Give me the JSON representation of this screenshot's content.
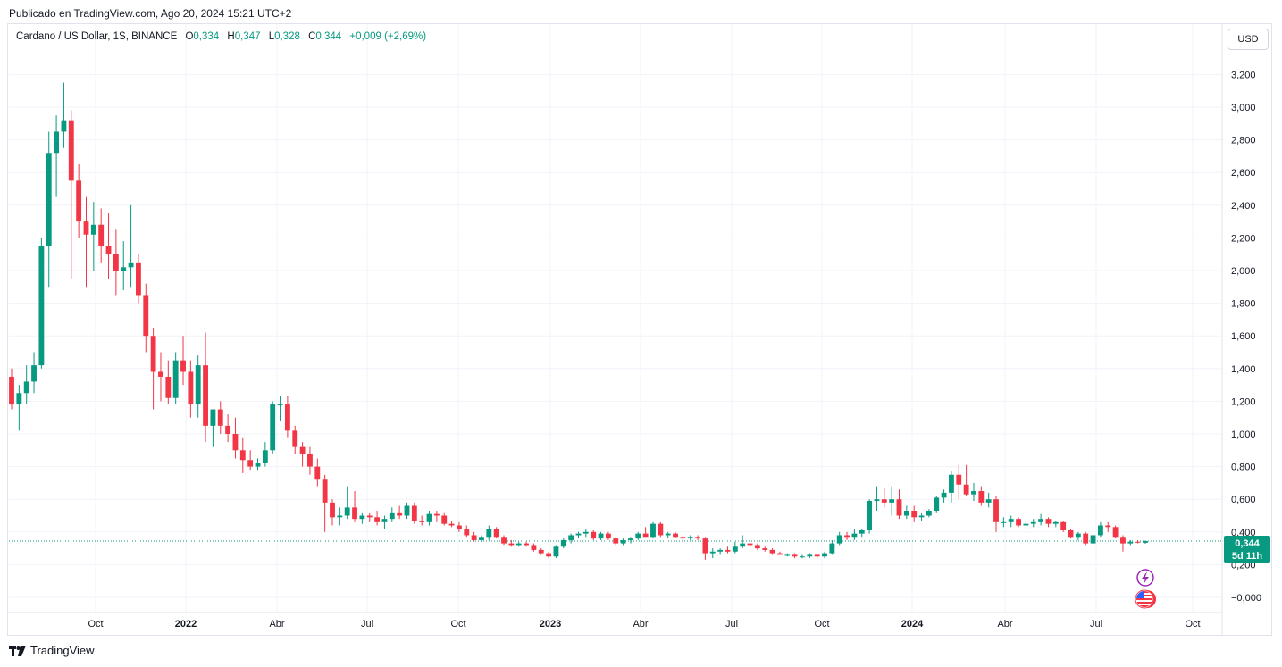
{
  "publisher": "Publicado en TradingView.com, Ago 20, 2024 15:21 UTC+2",
  "legend": {
    "symbol": "Cardano / US Dollar, 1S, BINANCE",
    "open_label": "O",
    "open": "0,334",
    "high_label": "H",
    "high": "0,347",
    "low_label": "L",
    "low": "0,328",
    "close_label": "C",
    "close": "0,344",
    "change": "+0,009 (+2,69%)"
  },
  "currency_button": "USD",
  "price_tag": {
    "price": "0,344",
    "countdown": "5d 11h"
  },
  "footer": {
    "brand": "TradingView"
  },
  "colors": {
    "up": "#089981",
    "down": "#f23645",
    "grid": "#f0f3fa",
    "tag": "#089981",
    "icon_purple": "#9c27b0",
    "icon_red": "#f23645"
  },
  "icons": [
    "lightning-icon",
    "us-flag-icon",
    "tradingview-logo-icon"
  ],
  "chart_data": {
    "type": "candlestick",
    "title": "",
    "xlabel": "",
    "ylabel": "",
    "ylim": [
      -0.1,
      3.35
    ],
    "x_tick_labels": [
      {
        "label": "Oct",
        "bold": false
      },
      {
        "label": "2022",
        "bold": true
      },
      {
        "label": "Abr",
        "bold": false
      },
      {
        "label": "Jul",
        "bold": false
      },
      {
        "label": "Oct",
        "bold": false
      },
      {
        "label": "2023",
        "bold": true
      },
      {
        "label": "Abr",
        "bold": false
      },
      {
        "label": "Jul",
        "bold": false
      },
      {
        "label": "Oct",
        "bold": false
      },
      {
        "label": "2024",
        "bold": true
      },
      {
        "label": "Abr",
        "bold": false
      },
      {
        "label": "Jul",
        "bold": false
      },
      {
        "label": "Oct",
        "bold": false
      }
    ],
    "y_tick_labels": [
      "3,200",
      "3,000",
      "2,800",
      "2,600",
      "2,400",
      "2,200",
      "2,000",
      "1,800",
      "1,600",
      "1,400",
      "1,200",
      "1,000",
      "0,800",
      "0,600",
      "0,400",
      "0,200",
      "−0,000"
    ],
    "y_tick_values": [
      3.2,
      3.0,
      2.8,
      2.6,
      2.4,
      2.2,
      2.0,
      1.8,
      1.6,
      1.4,
      1.2,
      1.0,
      0.8,
      0.6,
      0.4,
      0.2,
      0.0
    ],
    "last_price": 0.344,
    "grid": true,
    "candles": [
      {
        "o": 1.35,
        "h": 1.4,
        "l": 1.15,
        "c": 1.18
      },
      {
        "o": 1.18,
        "h": 1.3,
        "l": 1.02,
        "c": 1.25
      },
      {
        "o": 1.25,
        "h": 1.42,
        "l": 1.18,
        "c": 1.32
      },
      {
        "o": 1.32,
        "h": 1.5,
        "l": 1.25,
        "c": 1.42
      },
      {
        "o": 1.42,
        "h": 2.2,
        "l": 1.4,
        "c": 2.15
      },
      {
        "o": 2.15,
        "h": 2.85,
        "l": 1.9,
        "c": 2.72
      },
      {
        "o": 2.72,
        "h": 2.95,
        "l": 2.45,
        "c": 2.85
      },
      {
        "o": 2.85,
        "h": 3.15,
        "l": 2.75,
        "c": 2.92
      },
      {
        "o": 2.92,
        "h": 2.98,
        "l": 1.95,
        "c": 2.55
      },
      {
        "o": 2.55,
        "h": 2.65,
        "l": 2.2,
        "c": 2.3
      },
      {
        "o": 2.3,
        "h": 2.45,
        "l": 1.9,
        "c": 2.22
      },
      {
        "o": 2.22,
        "h": 2.42,
        "l": 2.0,
        "c": 2.28
      },
      {
        "o": 2.28,
        "h": 2.38,
        "l": 2.05,
        "c": 2.15
      },
      {
        "o": 2.15,
        "h": 2.35,
        "l": 1.95,
        "c": 2.1
      },
      {
        "o": 2.1,
        "h": 2.25,
        "l": 1.85,
        "c": 2.0
      },
      {
        "o": 2.0,
        "h": 2.18,
        "l": 1.88,
        "c": 2.02
      },
      {
        "o": 2.02,
        "h": 2.4,
        "l": 1.9,
        "c": 2.05
      },
      {
        "o": 2.05,
        "h": 2.1,
        "l": 1.8,
        "c": 1.85
      },
      {
        "o": 1.85,
        "h": 1.92,
        "l": 1.5,
        "c": 1.6
      },
      {
        "o": 1.6,
        "h": 1.65,
        "l": 1.15,
        "c": 1.38
      },
      {
        "o": 1.38,
        "h": 1.5,
        "l": 1.2,
        "c": 1.35
      },
      {
        "o": 1.35,
        "h": 1.45,
        "l": 1.18,
        "c": 1.22
      },
      {
        "o": 1.22,
        "h": 1.5,
        "l": 1.18,
        "c": 1.45
      },
      {
        "o": 1.45,
        "h": 1.6,
        "l": 1.3,
        "c": 1.38
      },
      {
        "o": 1.38,
        "h": 1.45,
        "l": 1.1,
        "c": 1.18
      },
      {
        "o": 1.18,
        "h": 1.48,
        "l": 1.1,
        "c": 1.42
      },
      {
        "o": 1.42,
        "h": 1.62,
        "l": 0.95,
        "c": 1.05
      },
      {
        "o": 1.05,
        "h": 1.15,
        "l": 0.92,
        "c": 1.15
      },
      {
        "o": 1.15,
        "h": 1.2,
        "l": 1.0,
        "c": 1.05
      },
      {
        "o": 1.05,
        "h": 1.12,
        "l": 0.95,
        "c": 1.0
      },
      {
        "o": 1.0,
        "h": 1.1,
        "l": 0.85,
        "c": 0.9
      },
      {
        "o": 0.9,
        "h": 0.98,
        "l": 0.76,
        "c": 0.84
      },
      {
        "o": 0.84,
        "h": 0.9,
        "l": 0.78,
        "c": 0.8
      },
      {
        "o": 0.8,
        "h": 0.85,
        "l": 0.78,
        "c": 0.82
      },
      {
        "o": 0.82,
        "h": 0.95,
        "l": 0.8,
        "c": 0.9
      },
      {
        "o": 0.9,
        "h": 1.2,
        "l": 0.88,
        "c": 1.18
      },
      {
        "o": 1.18,
        "h": 1.23,
        "l": 1.08,
        "c": 1.18
      },
      {
        "o": 1.18,
        "h": 1.23,
        "l": 0.98,
        "c": 1.02
      },
      {
        "o": 1.02,
        "h": 1.05,
        "l": 0.88,
        "c": 0.92
      },
      {
        "o": 0.92,
        "h": 0.95,
        "l": 0.8,
        "c": 0.88
      },
      {
        "o": 0.88,
        "h": 0.92,
        "l": 0.75,
        "c": 0.8
      },
      {
        "o": 0.8,
        "h": 0.85,
        "l": 0.68,
        "c": 0.72
      },
      {
        "o": 0.72,
        "h": 0.75,
        "l": 0.4,
        "c": 0.58
      },
      {
        "o": 0.58,
        "h": 0.6,
        "l": 0.44,
        "c": 0.49
      },
      {
        "o": 0.49,
        "h": 0.55,
        "l": 0.44,
        "c": 0.5
      },
      {
        "o": 0.5,
        "h": 0.68,
        "l": 0.48,
        "c": 0.55
      },
      {
        "o": 0.55,
        "h": 0.65,
        "l": 0.46,
        "c": 0.48
      },
      {
        "o": 0.48,
        "h": 0.52,
        "l": 0.45,
        "c": 0.5
      },
      {
        "o": 0.5,
        "h": 0.52,
        "l": 0.46,
        "c": 0.49
      },
      {
        "o": 0.49,
        "h": 0.53,
        "l": 0.44,
        "c": 0.46
      },
      {
        "o": 0.46,
        "h": 0.5,
        "l": 0.42,
        "c": 0.48
      },
      {
        "o": 0.48,
        "h": 0.55,
        "l": 0.46,
        "c": 0.52
      },
      {
        "o": 0.52,
        "h": 0.56,
        "l": 0.48,
        "c": 0.5
      },
      {
        "o": 0.5,
        "h": 0.58,
        "l": 0.48,
        "c": 0.56
      },
      {
        "o": 0.56,
        "h": 0.58,
        "l": 0.45,
        "c": 0.47
      },
      {
        "o": 0.47,
        "h": 0.5,
        "l": 0.44,
        "c": 0.46
      },
      {
        "o": 0.46,
        "h": 0.53,
        "l": 0.44,
        "c": 0.51
      },
      {
        "o": 0.51,
        "h": 0.53,
        "l": 0.46,
        "c": 0.5
      },
      {
        "o": 0.5,
        "h": 0.52,
        "l": 0.44,
        "c": 0.45
      },
      {
        "o": 0.45,
        "h": 0.47,
        "l": 0.43,
        "c": 0.44
      },
      {
        "o": 0.44,
        "h": 0.46,
        "l": 0.4,
        "c": 0.42
      },
      {
        "o": 0.42,
        "h": 0.44,
        "l": 0.37,
        "c": 0.38
      },
      {
        "o": 0.38,
        "h": 0.4,
        "l": 0.34,
        "c": 0.35
      },
      {
        "o": 0.35,
        "h": 0.38,
        "l": 0.34,
        "c": 0.37
      },
      {
        "o": 0.37,
        "h": 0.44,
        "l": 0.35,
        "c": 0.42
      },
      {
        "o": 0.42,
        "h": 0.43,
        "l": 0.36,
        "c": 0.37
      },
      {
        "o": 0.37,
        "h": 0.38,
        "l": 0.32,
        "c": 0.33
      },
      {
        "o": 0.33,
        "h": 0.35,
        "l": 0.31,
        "c": 0.32
      },
      {
        "o": 0.32,
        "h": 0.34,
        "l": 0.31,
        "c": 0.33
      },
      {
        "o": 0.33,
        "h": 0.34,
        "l": 0.31,
        "c": 0.32
      },
      {
        "o": 0.32,
        "h": 0.33,
        "l": 0.28,
        "c": 0.29
      },
      {
        "o": 0.29,
        "h": 0.3,
        "l": 0.26,
        "c": 0.27
      },
      {
        "o": 0.27,
        "h": 0.28,
        "l": 0.24,
        "c": 0.25
      },
      {
        "o": 0.25,
        "h": 0.32,
        "l": 0.24,
        "c": 0.31
      },
      {
        "o": 0.31,
        "h": 0.36,
        "l": 0.3,
        "c": 0.35
      },
      {
        "o": 0.35,
        "h": 0.39,
        "l": 0.33,
        "c": 0.38
      },
      {
        "o": 0.38,
        "h": 0.4,
        "l": 0.36,
        "c": 0.39
      },
      {
        "o": 0.39,
        "h": 0.42,
        "l": 0.37,
        "c": 0.4
      },
      {
        "o": 0.4,
        "h": 0.41,
        "l": 0.35,
        "c": 0.36
      },
      {
        "o": 0.36,
        "h": 0.4,
        "l": 0.35,
        "c": 0.39
      },
      {
        "o": 0.39,
        "h": 0.4,
        "l": 0.35,
        "c": 0.36
      },
      {
        "o": 0.36,
        "h": 0.37,
        "l": 0.32,
        "c": 0.33
      },
      {
        "o": 0.33,
        "h": 0.36,
        "l": 0.32,
        "c": 0.35
      },
      {
        "o": 0.35,
        "h": 0.37,
        "l": 0.33,
        "c": 0.36
      },
      {
        "o": 0.36,
        "h": 0.4,
        "l": 0.35,
        "c": 0.39
      },
      {
        "o": 0.39,
        "h": 0.43,
        "l": 0.37,
        "c": 0.37
      },
      {
        "o": 0.37,
        "h": 0.46,
        "l": 0.36,
        "c": 0.45
      },
      {
        "o": 0.45,
        "h": 0.46,
        "l": 0.37,
        "c": 0.38
      },
      {
        "o": 0.38,
        "h": 0.4,
        "l": 0.36,
        "c": 0.39
      },
      {
        "o": 0.39,
        "h": 0.4,
        "l": 0.36,
        "c": 0.37
      },
      {
        "o": 0.37,
        "h": 0.38,
        "l": 0.35,
        "c": 0.36
      },
      {
        "o": 0.36,
        "h": 0.38,
        "l": 0.35,
        "c": 0.37
      },
      {
        "o": 0.37,
        "h": 0.38,
        "l": 0.35,
        "c": 0.36
      },
      {
        "o": 0.36,
        "h": 0.37,
        "l": 0.23,
        "c": 0.27
      },
      {
        "o": 0.27,
        "h": 0.3,
        "l": 0.24,
        "c": 0.28
      },
      {
        "o": 0.28,
        "h": 0.3,
        "l": 0.26,
        "c": 0.29
      },
      {
        "o": 0.29,
        "h": 0.31,
        "l": 0.27,
        "c": 0.28
      },
      {
        "o": 0.28,
        "h": 0.34,
        "l": 0.27,
        "c": 0.31
      },
      {
        "o": 0.31,
        "h": 0.38,
        "l": 0.3,
        "c": 0.33
      },
      {
        "o": 0.33,
        "h": 0.34,
        "l": 0.3,
        "c": 0.32
      },
      {
        "o": 0.32,
        "h": 0.33,
        "l": 0.29,
        "c": 0.3
      },
      {
        "o": 0.3,
        "h": 0.31,
        "l": 0.28,
        "c": 0.29
      },
      {
        "o": 0.29,
        "h": 0.3,
        "l": 0.26,
        "c": 0.27
      },
      {
        "o": 0.27,
        "h": 0.28,
        "l": 0.26,
        "c": 0.26
      },
      {
        "o": 0.26,
        "h": 0.27,
        "l": 0.25,
        "c": 0.26
      },
      {
        "o": 0.26,
        "h": 0.27,
        "l": 0.24,
        "c": 0.25
      },
      {
        "o": 0.25,
        "h": 0.26,
        "l": 0.24,
        "c": 0.25
      },
      {
        "o": 0.25,
        "h": 0.27,
        "l": 0.24,
        "c": 0.26
      },
      {
        "o": 0.26,
        "h": 0.27,
        "l": 0.24,
        "c": 0.25
      },
      {
        "o": 0.25,
        "h": 0.28,
        "l": 0.24,
        "c": 0.27
      },
      {
        "o": 0.27,
        "h": 0.35,
        "l": 0.26,
        "c": 0.33
      },
      {
        "o": 0.33,
        "h": 0.4,
        "l": 0.32,
        "c": 0.38
      },
      {
        "o": 0.38,
        "h": 0.4,
        "l": 0.35,
        "c": 0.37
      },
      {
        "o": 0.37,
        "h": 0.42,
        "l": 0.35,
        "c": 0.39
      },
      {
        "o": 0.39,
        "h": 0.42,
        "l": 0.37,
        "c": 0.41
      },
      {
        "o": 0.41,
        "h": 0.6,
        "l": 0.39,
        "c": 0.59
      },
      {
        "o": 0.59,
        "h": 0.68,
        "l": 0.53,
        "c": 0.6
      },
      {
        "o": 0.6,
        "h": 0.67,
        "l": 0.55,
        "c": 0.58
      },
      {
        "o": 0.58,
        "h": 0.68,
        "l": 0.5,
        "c": 0.6
      },
      {
        "o": 0.6,
        "h": 0.66,
        "l": 0.48,
        "c": 0.5
      },
      {
        "o": 0.5,
        "h": 0.56,
        "l": 0.48,
        "c": 0.53
      },
      {
        "o": 0.53,
        "h": 0.56,
        "l": 0.46,
        "c": 0.49
      },
      {
        "o": 0.49,
        "h": 0.52,
        "l": 0.47,
        "c": 0.5
      },
      {
        "o": 0.5,
        "h": 0.54,
        "l": 0.49,
        "c": 0.53
      },
      {
        "o": 0.53,
        "h": 0.62,
        "l": 0.52,
        "c": 0.61
      },
      {
        "o": 0.61,
        "h": 0.66,
        "l": 0.58,
        "c": 0.64
      },
      {
        "o": 0.64,
        "h": 0.77,
        "l": 0.58,
        "c": 0.75
      },
      {
        "o": 0.75,
        "h": 0.81,
        "l": 0.6,
        "c": 0.69
      },
      {
        "o": 0.69,
        "h": 0.81,
        "l": 0.62,
        "c": 0.63
      },
      {
        "o": 0.63,
        "h": 0.7,
        "l": 0.59,
        "c": 0.65
      },
      {
        "o": 0.65,
        "h": 0.68,
        "l": 0.56,
        "c": 0.58
      },
      {
        "o": 0.58,
        "h": 0.64,
        "l": 0.55,
        "c": 0.6
      },
      {
        "o": 0.6,
        "h": 0.62,
        "l": 0.4,
        "c": 0.46
      },
      {
        "o": 0.46,
        "h": 0.49,
        "l": 0.43,
        "c": 0.46
      },
      {
        "o": 0.46,
        "h": 0.5,
        "l": 0.43,
        "c": 0.48
      },
      {
        "o": 0.48,
        "h": 0.49,
        "l": 0.43,
        "c": 0.44
      },
      {
        "o": 0.44,
        "h": 0.47,
        "l": 0.42,
        "c": 0.45
      },
      {
        "o": 0.45,
        "h": 0.48,
        "l": 0.43,
        "c": 0.46
      },
      {
        "o": 0.46,
        "h": 0.51,
        "l": 0.44,
        "c": 0.48
      },
      {
        "o": 0.48,
        "h": 0.49,
        "l": 0.43,
        "c": 0.45
      },
      {
        "o": 0.45,
        "h": 0.47,
        "l": 0.43,
        "c": 0.46
      },
      {
        "o": 0.46,
        "h": 0.47,
        "l": 0.4,
        "c": 0.41
      },
      {
        "o": 0.41,
        "h": 0.42,
        "l": 0.36,
        "c": 0.37
      },
      {
        "o": 0.37,
        "h": 0.4,
        "l": 0.35,
        "c": 0.39
      },
      {
        "o": 0.39,
        "h": 0.4,
        "l": 0.32,
        "c": 0.33
      },
      {
        "o": 0.33,
        "h": 0.39,
        "l": 0.32,
        "c": 0.38
      },
      {
        "o": 0.38,
        "h": 0.46,
        "l": 0.37,
        "c": 0.44
      },
      {
        "o": 0.44,
        "h": 0.46,
        "l": 0.4,
        "c": 0.43
      },
      {
        "o": 0.43,
        "h": 0.44,
        "l": 0.36,
        "c": 0.37
      },
      {
        "o": 0.37,
        "h": 0.38,
        "l": 0.28,
        "c": 0.33
      },
      {
        "o": 0.33,
        "h": 0.35,
        "l": 0.32,
        "c": 0.34
      },
      {
        "o": 0.34,
        "h": 0.35,
        "l": 0.33,
        "c": 0.335
      },
      {
        "o": 0.334,
        "h": 0.347,
        "l": 0.328,
        "c": 0.344
      }
    ]
  }
}
